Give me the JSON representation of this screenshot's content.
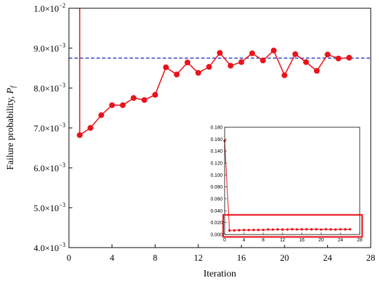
{
  "chart_data": [
    {
      "type": "line",
      "role": "main",
      "xlabel": "Iteration",
      "ylabel_text": "Failure probability, ",
      "ylabel_symbol": "P",
      "ylabel_sub": "f",
      "xlim": [
        0,
        28
      ],
      "ylim": [
        0.004,
        0.01
      ],
      "xticks": [
        0,
        4,
        8,
        12,
        16,
        20,
        24,
        28
      ],
      "yticks": [
        {
          "value": 0.004,
          "mantissa": "4.0",
          "exponent": "−3"
        },
        {
          "value": 0.005,
          "mantissa": "5.0",
          "exponent": "−3"
        },
        {
          "value": 0.006,
          "mantissa": "6.0",
          "exponent": "−3"
        },
        {
          "value": 0.007,
          "mantissa": "7.0",
          "exponent": "−3"
        },
        {
          "value": 0.008,
          "mantissa": "8.0",
          "exponent": "−3"
        },
        {
          "value": 0.009,
          "mantissa": "9.0",
          "exponent": "−3"
        },
        {
          "value": 0.01,
          "mantissa": "1.0",
          "exponent": "−2"
        }
      ],
      "tick_prefix": "×10",
      "series": [
        {
          "color": "#e8141c",
          "marker": "circle",
          "x": [
            1,
            2,
            3,
            4,
            5,
            6,
            7,
            8,
            9,
            10,
            11,
            12,
            13,
            14,
            15,
            16,
            17,
            18,
            19,
            20,
            21,
            22,
            23,
            24,
            25,
            26
          ],
          "y": [
            0.00682,
            0.007,
            0.00732,
            0.00757,
            0.00757,
            0.00775,
            0.0077,
            0.00783,
            0.00852,
            0.00834,
            0.00864,
            0.00838,
            0.00853,
            0.00888,
            0.00856,
            0.00865,
            0.00887,
            0.00869,
            0.00894,
            0.00832,
            0.00885,
            0.00865,
            0.00843,
            0.00884,
            0.00874,
            0.00876
          ],
          "start_line_top": 0.01
        }
      ],
      "reference_line": {
        "y": 0.00875,
        "color": "#2a3fc9",
        "style": "dashed"
      }
    },
    {
      "type": "line",
      "role": "inset",
      "xlim": [
        0,
        28
      ],
      "ylim": [
        0,
        0.18
      ],
      "xticks": [
        0,
        4,
        8,
        12,
        16,
        20,
        24,
        28
      ],
      "yticks": [
        "0.000",
        "0.020",
        "0.040",
        "0.060",
        "0.080",
        "0.100",
        "0.120",
        "0.140",
        "0.160",
        "0.180"
      ],
      "ytick_values": [
        0,
        0.02,
        0.04,
        0.06,
        0.08,
        0.1,
        0.12,
        0.14,
        0.16,
        0.18
      ],
      "series": [
        {
          "color": "#e8141c",
          "marker": "circle",
          "x": [
            0,
            1,
            2,
            3,
            4,
            5,
            6,
            7,
            8,
            9,
            10,
            11,
            12,
            13,
            14,
            15,
            16,
            17,
            18,
            19,
            20,
            21,
            22,
            23,
            24,
            25,
            26
          ],
          "y": [
            0.157,
            0.0068,
            0.007,
            0.0073,
            0.0076,
            0.0076,
            0.0078,
            0.0077,
            0.0078,
            0.0085,
            0.0083,
            0.0086,
            0.0084,
            0.0085,
            0.0089,
            0.0086,
            0.0087,
            0.0089,
            0.0087,
            0.0089,
            0.0083,
            0.0089,
            0.0087,
            0.0084,
            0.0088,
            0.0087,
            0.0088
          ]
        }
      ],
      "highlight_box": {
        "color": "#e8141c",
        "x_range": [
          -0.3,
          28.5
        ],
        "y_range": [
          -0.004,
          0.033
        ]
      }
    }
  ]
}
